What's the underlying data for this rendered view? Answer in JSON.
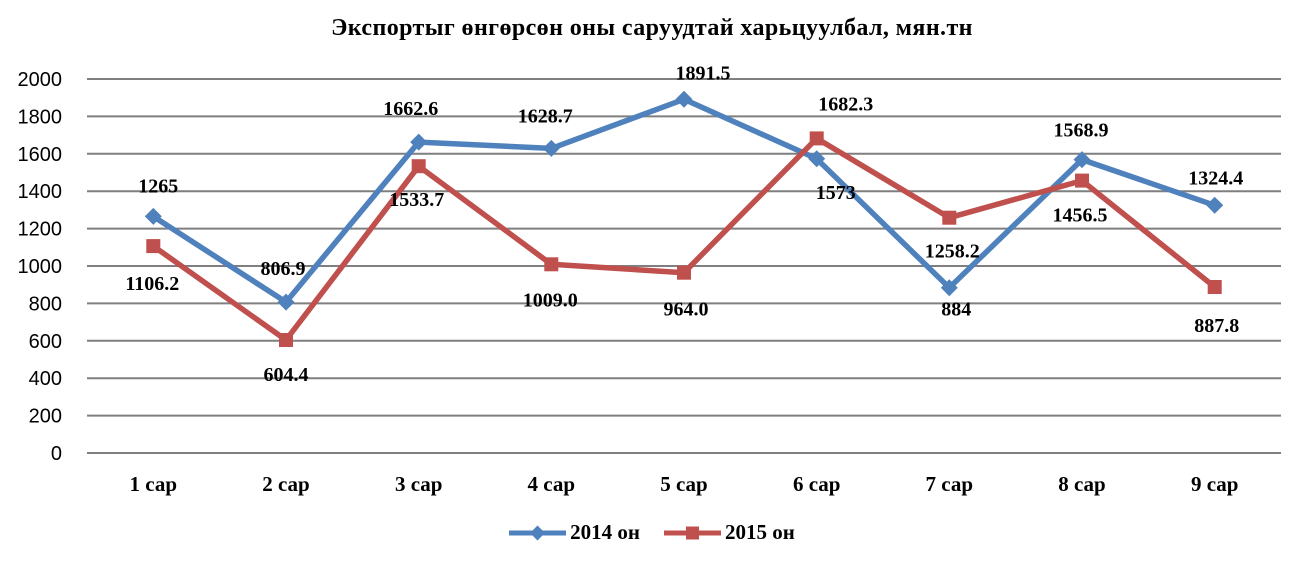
{
  "chart_data": {
    "type": "line",
    "title": "Экспортыг өнгөрсөн оны саруудтай харьцуулбал, мян.тн",
    "categories": [
      "1 сар",
      "2 сар",
      "3 сар",
      "4 сар",
      "5 сар",
      "6 сар",
      "7 сар",
      "8 сар",
      "9 сар"
    ],
    "series": [
      {
        "name": "2014 он",
        "color": "#4F81BD",
        "marker": "diamond",
        "values": [
          1265,
          806.9,
          1662.6,
          1628.7,
          1891.5,
          1573,
          884,
          1568.9,
          1324.4
        ],
        "labels": [
          "1265",
          "806.9",
          "1662.6",
          "1628.7",
          "1891.5",
          "1573",
          "884",
          "1568.9",
          "1324.4"
        ],
        "label_offsets": [
          [
            5,
            -24
          ],
          [
            -3,
            -27
          ],
          [
            -8,
            -27
          ],
          [
            -6,
            -26
          ],
          [
            19,
            -20
          ],
          [
            19,
            40
          ],
          [
            7,
            28
          ],
          [
            -1,
            -23
          ],
          [
            1,
            -21
          ]
        ]
      },
      {
        "name": "2015 он",
        "color": "#C0504D",
        "marker": "square",
        "values": [
          1106.2,
          604.4,
          1533.7,
          1009.0,
          964.0,
          1682.3,
          1258.2,
          1456.5,
          887.8
        ],
        "labels": [
          "1106.2",
          "604.4",
          "1533.7",
          "1009.0",
          "964.0",
          "1682.3",
          "1258.2",
          "1456.5",
          "887.8"
        ],
        "label_offsets": [
          [
            -1,
            44
          ],
          [
            0,
            41
          ],
          [
            -2,
            40
          ],
          [
            -1,
            42
          ],
          [
            2,
            43
          ],
          [
            29,
            -28
          ],
          [
            3,
            40
          ],
          [
            -2,
            41
          ],
          [
            2,
            45
          ]
        ]
      }
    ],
    "y_axis": {
      "min": 0,
      "max": 2000,
      "tick_interval": 200,
      "ticks": [
        "0",
        "200",
        "400",
        "600",
        "800",
        "1000",
        "1200",
        "1400",
        "1600",
        "1800",
        "2000"
      ]
    },
    "x_axis": {
      "label": ""
    },
    "grid": true,
    "gridline_color": "#7F7F7F",
    "background_color": "#FFFFFF",
    "legend_position": "bottom"
  }
}
